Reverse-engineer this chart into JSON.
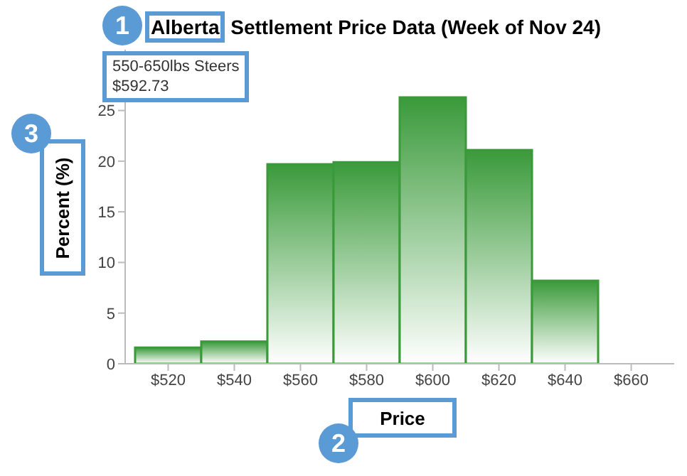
{
  "chart_data": {
    "type": "histogram",
    "title": "Alberta Settlement Price Data (Week of Nov 24)",
    "xlabel": "Price",
    "ylabel": "Percent (%)",
    "bins": [
      510,
      530,
      550,
      570,
      590,
      610,
      630,
      650
    ],
    "values": [
      1.6,
      2.2,
      19.7,
      19.9,
      26.3,
      21.1,
      8.2
    ],
    "color": "#3a9a3a",
    "xlim": [
      507,
      673
    ],
    "xticks": [
      {
        "value": 520,
        "label": "$520"
      },
      {
        "value": 540,
        "label": "$540"
      },
      {
        "value": 560,
        "label": "$560"
      },
      {
        "value": 580,
        "label": "$580"
      },
      {
        "value": 600,
        "label": "$600"
      },
      {
        "value": 620,
        "label": "$620"
      },
      {
        "value": 640,
        "label": "$640"
      },
      {
        "value": 660,
        "label": "$660"
      }
    ],
    "ylim": [
      0,
      31
    ],
    "yticks": [
      0,
      5,
      10,
      15,
      20,
      25
    ],
    "annotations": [
      "550-650lbs Steers",
      "$592.73",
      "1",
      "2",
      "3"
    ]
  }
}
